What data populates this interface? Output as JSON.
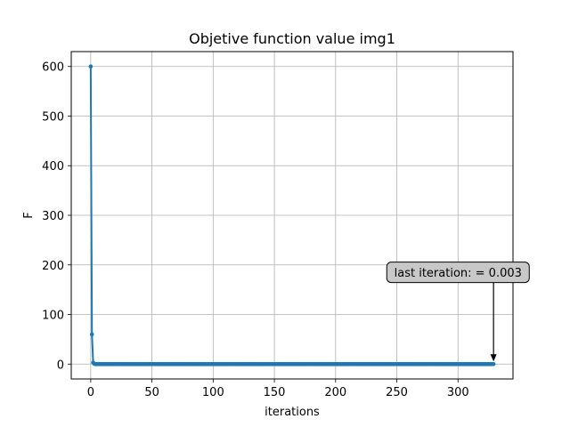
{
  "chart_data": {
    "type": "line",
    "title": "Objetive function value img1",
    "xlabel": "iterations",
    "ylabel": "F",
    "xlim": [
      -15.9,
      344.9
    ],
    "ylim": [
      -30.0,
      630.0
    ],
    "xticks": [
      0,
      50,
      100,
      150,
      200,
      250,
      300
    ],
    "yticks": [
      0,
      100,
      200,
      300,
      400,
      500,
      600
    ],
    "grid": true,
    "series": [
      {
        "color": "#1f77b4",
        "marker": "circle",
        "x_start": 0,
        "x_end": 329,
        "head": [
          600,
          60,
          3,
          0.5
        ],
        "tail_value": 0.003
      }
    ],
    "annotation": {
      "text": "last iteration: = 0.003",
      "point": [
        329,
        0.003
      ],
      "text_anchor_xy": [
        300,
        185
      ],
      "box_color": "#c8c8c8"
    }
  }
}
